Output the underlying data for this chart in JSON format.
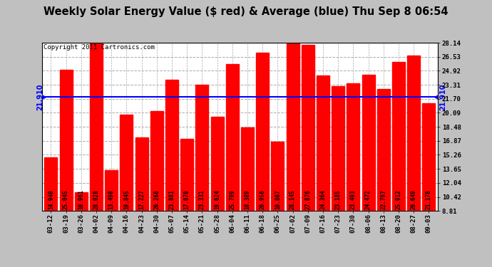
{
  "title": "Weekly Solar Energy Value ($ red) & Average (blue) Thu Sep 8 06:54",
  "copyright": "Copyright 2011 Cartronics.com",
  "average": 21.91,
  "bar_color": "#FF0000",
  "average_color": "#0000FF",
  "figure_bg": "#C0C0C0",
  "plot_bg": "#FFFFFF",
  "categories": [
    "03-12",
    "03-19",
    "03-26",
    "04-02",
    "04-09",
    "04-16",
    "04-23",
    "04-30",
    "05-07",
    "05-14",
    "05-21",
    "05-28",
    "06-04",
    "06-11",
    "06-18",
    "06-25",
    "07-02",
    "07-09",
    "07-16",
    "07-23",
    "07-30",
    "08-06",
    "08-13",
    "08-20",
    "08-27",
    "09-03"
  ],
  "values": [
    14.94,
    25.045,
    10.961,
    28.028,
    13.498,
    19.845,
    17.227,
    20.268,
    23.881,
    17.07,
    23.331,
    19.624,
    25.709,
    18.389,
    26.956,
    16.807,
    28.145,
    27.876,
    24.364,
    23.185,
    23.493,
    24.472,
    22.797,
    25.912,
    26.649,
    21.178
  ],
  "ylim_min": 8.81,
  "ylim_max": 28.14,
  "yticks_right": [
    8.81,
    10.42,
    12.04,
    13.65,
    15.26,
    16.87,
    18.48,
    20.09,
    21.7,
    23.31,
    24.92,
    26.53,
    28.14
  ],
  "grid_color": "#AAAAAA",
  "title_fontsize": 10.5,
  "copyright_fontsize": 6.5,
  "bar_label_fontsize": 5.5,
  "tick_fontsize": 6.5,
  "average_label": "21.910",
  "avg_label_fontsize": 7
}
